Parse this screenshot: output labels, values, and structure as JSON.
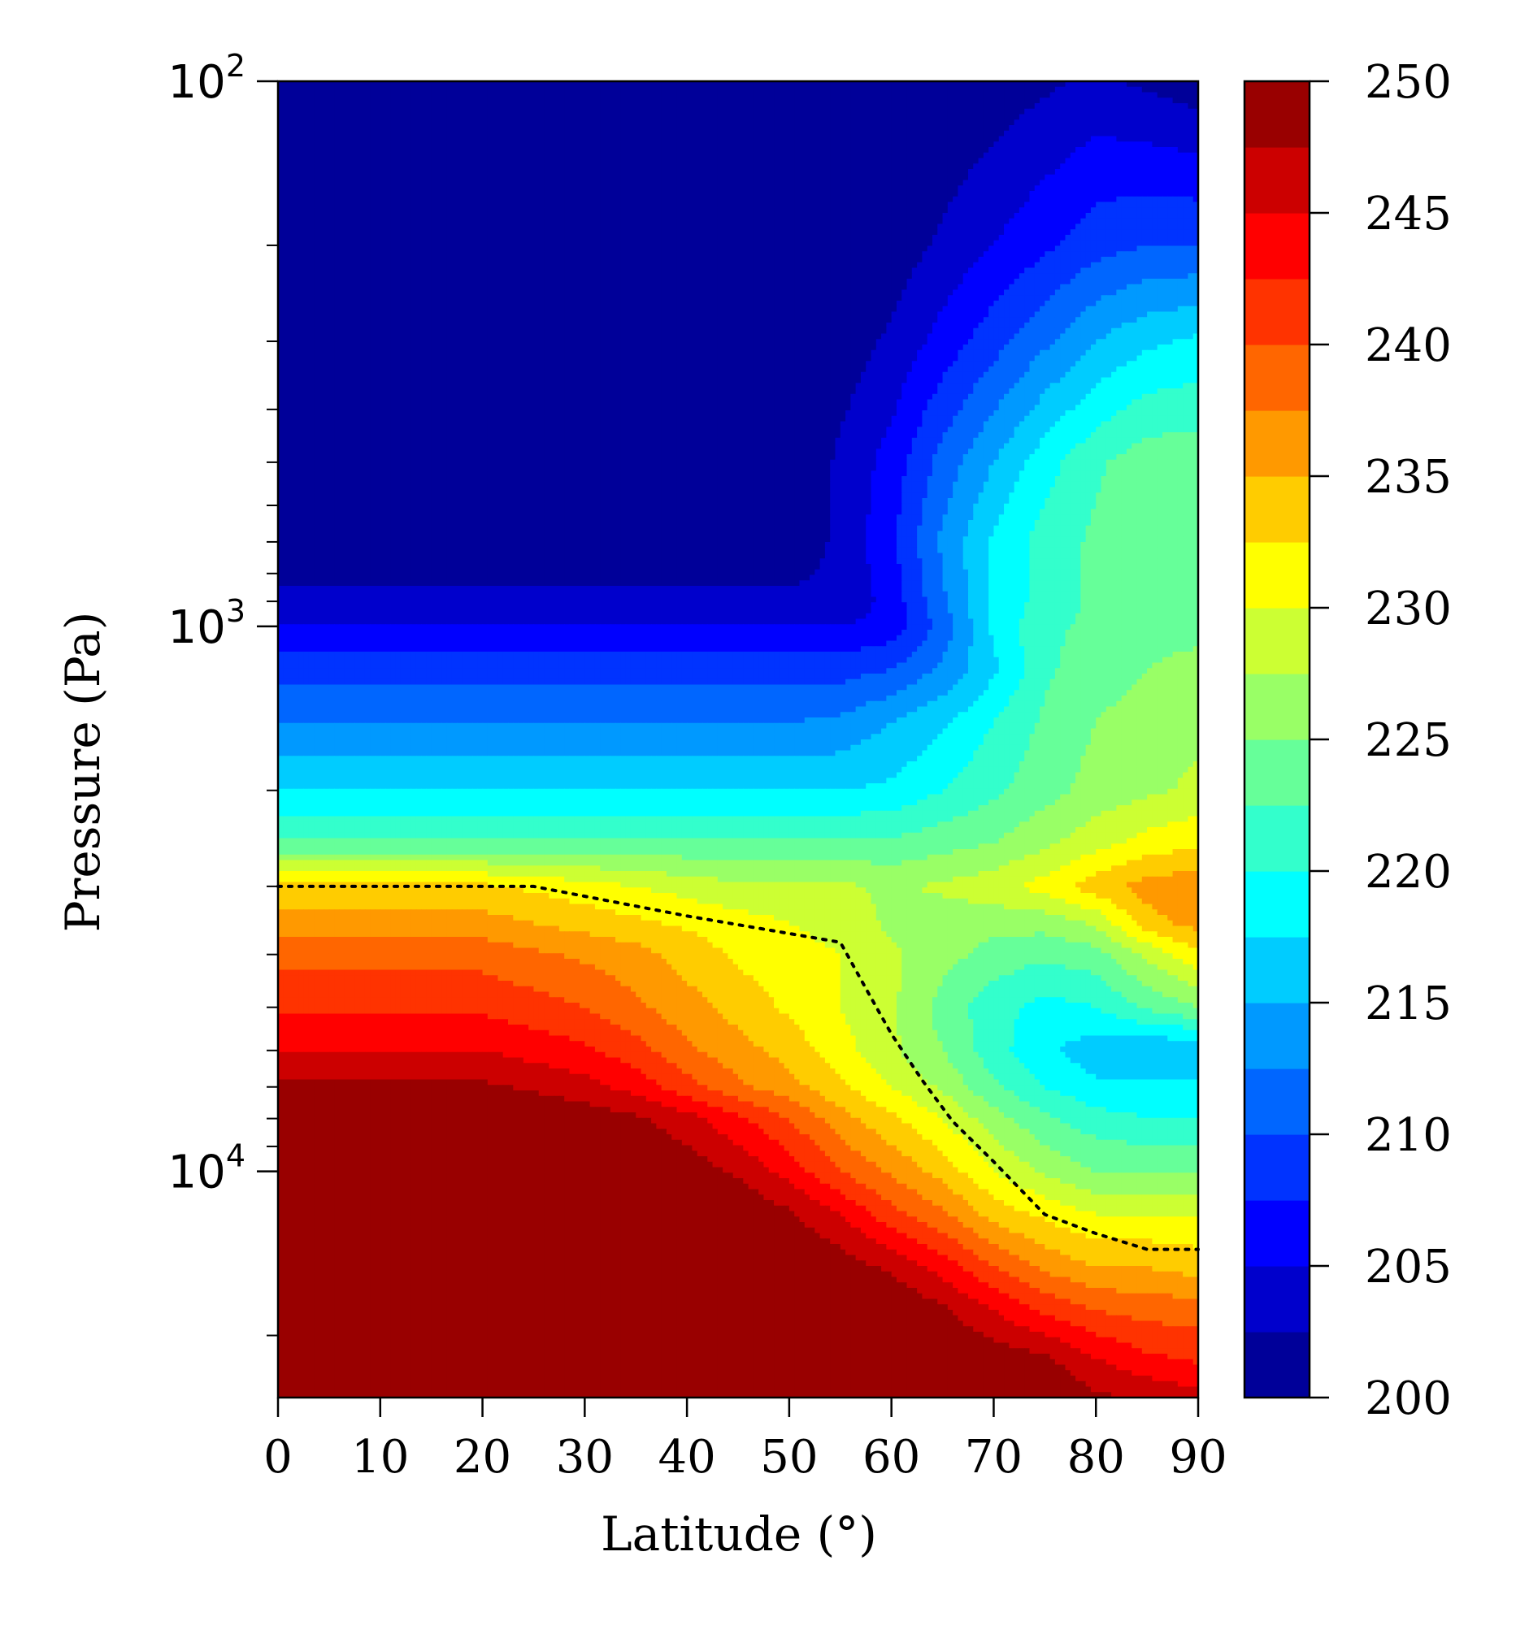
{
  "chart_data": {
    "type": "contour",
    "xlabel": "Latitude (°)",
    "ylabel": "Pressure (Pa)",
    "xlim": [
      0,
      90
    ],
    "ylim_log": [
      100,
      26000
    ],
    "y_scale": "log",
    "y_inverted": true,
    "x_ticks": [
      "0",
      "10",
      "20",
      "30",
      "40",
      "50",
      "60",
      "70",
      "80",
      "90"
    ],
    "y_ticks": [
      {
        "base": "10",
        "exp": "2",
        "value": 100
      },
      {
        "base": "10",
        "exp": "3",
        "value": 1000
      },
      {
        "base": "10",
        "exp": "4",
        "value": 10000
      }
    ],
    "colorbar": {
      "levels": [
        200,
        202.5,
        205,
        207.5,
        210,
        212.5,
        215,
        217.5,
        220,
        222.5,
        225,
        227.5,
        230,
        232.5,
        235,
        237.5,
        240,
        242.5,
        245,
        247.5,
        250
      ],
      "tick_labels": [
        "200",
        "205",
        "210",
        "215",
        "220",
        "225",
        "230",
        "235",
        "240",
        "245",
        "250"
      ],
      "colormap": "jet"
    },
    "grid": false,
    "tropopause_line": {
      "style": "dotted",
      "color": "#000000",
      "points": [
        [
          0,
          3000
        ],
        [
          25,
          3000
        ],
        [
          40,
          3400
        ],
        [
          55,
          3800
        ],
        [
          58,
          4800
        ],
        [
          60,
          5600
        ],
        [
          63,
          6800
        ],
        [
          66,
          8100
        ],
        [
          70,
          9600
        ],
        [
          75,
          12000
        ],
        [
          80,
          13000
        ],
        [
          85,
          13900
        ],
        [
          90,
          13900
        ]
      ]
    },
    "temperature_field": {
      "units": "K",
      "latitudes": [
        0,
        5,
        10,
        15,
        20,
        25,
        30,
        35,
        40,
        45,
        50,
        55,
        60,
        65,
        70,
        75,
        80,
        85,
        90
      ],
      "pressures": [
        100,
        200,
        300,
        500,
        700,
        900,
        1000,
        1200,
        1500,
        2000,
        2500,
        3000,
        3500,
        4000,
        5000,
        6000,
        7000,
        8000,
        10000,
        12000,
        15000,
        18000,
        22000,
        26000
      ],
      "values": [
        [
          200,
          200,
          200,
          200,
          200,
          200,
          200,
          200,
          200,
          200,
          200,
          200,
          200,
          200,
          201,
          202,
          203,
          202,
          201
        ],
        [
          200,
          200,
          200,
          200,
          200,
          200,
          200,
          200,
          200,
          200,
          200,
          200,
          201,
          203,
          205,
          207,
          209,
          210,
          210
        ],
        [
          200,
          200,
          200,
          200,
          200,
          200,
          200,
          200,
          200,
          200,
          200,
          201,
          203,
          206,
          209,
          212,
          215,
          217,
          218
        ],
        [
          200,
          200,
          200,
          200,
          200,
          200,
          200,
          200,
          200,
          200,
          200,
          203,
          206,
          211,
          215,
          219,
          222,
          224,
          224
        ],
        [
          201,
          201,
          201,
          201,
          201,
          201,
          201,
          201,
          201,
          201,
          201,
          203,
          207,
          213,
          218,
          221,
          223,
          225,
          225
        ],
        [
          203,
          203,
          203,
          203,
          203,
          203,
          203,
          203,
          203,
          203,
          203,
          203,
          206,
          212,
          218,
          221,
          223,
          224,
          224
        ],
        [
          205,
          205,
          205,
          205,
          205,
          205,
          205,
          205,
          205,
          205,
          205,
          205,
          206,
          211,
          218,
          222,
          223,
          224,
          224
        ],
        [
          209,
          209,
          209,
          209,
          209,
          209,
          209,
          209,
          209,
          209,
          209,
          209,
          210,
          213,
          217,
          222,
          224,
          225,
          226
        ],
        [
          212.5,
          212.5,
          212.5,
          212.5,
          212.5,
          212.5,
          212.5,
          212.5,
          212.5,
          212.5,
          212.5,
          213,
          215,
          217,
          220,
          223,
          225,
          226,
          227
        ],
        [
          217.5,
          217.5,
          217.5,
          217.5,
          217.5,
          217.5,
          217.5,
          217.5,
          217.5,
          217.5,
          217.5,
          217.5,
          218,
          220,
          222,
          224,
          226,
          227,
          228
        ],
        [
          223,
          223,
          223,
          223,
          223,
          223,
          223,
          223,
          223,
          223,
          223,
          223,
          223,
          224,
          225,
          227,
          229,
          231,
          232
        ],
        [
          233,
          233,
          233,
          233,
          233,
          232,
          231,
          230,
          229,
          228,
          228,
          228,
          227,
          228,
          229,
          231,
          234,
          236,
          237
        ],
        [
          236,
          236,
          236,
          236,
          236,
          235,
          234,
          233,
          232,
          231,
          230,
          229,
          227,
          226,
          226,
          226,
          228,
          234,
          236
        ],
        [
          239,
          239,
          239,
          239,
          239,
          238,
          237,
          236,
          234,
          232,
          231,
          230,
          228,
          226,
          224,
          223,
          224,
          228,
          232
        ],
        [
          242,
          242,
          242,
          242,
          242,
          241,
          240,
          238,
          236,
          234,
          232,
          230,
          228,
          224,
          221,
          219,
          220,
          223,
          225
        ],
        [
          245,
          245,
          245,
          245,
          245,
          244,
          243,
          241,
          238,
          236,
          234,
          231,
          228,
          225,
          221,
          218,
          216,
          215,
          215
        ],
        [
          248,
          248,
          248,
          248,
          248,
          247,
          246,
          244,
          241,
          238,
          236,
          233,
          230,
          227,
          223,
          220,
          218,
          218,
          218
        ],
        [
          250,
          250,
          250,
          250,
          250,
          250,
          249,
          248,
          246,
          243,
          240,
          236,
          233,
          230,
          226,
          223,
          221,
          220,
          220
        ],
        [
          250,
          250,
          250,
          250,
          250,
          250,
          250,
          250,
          249,
          247,
          244,
          240,
          237,
          234,
          230,
          227,
          225,
          225,
          225
        ],
        [
          250,
          250,
          250,
          250,
          250,
          250,
          250,
          250,
          250,
          250,
          248,
          245,
          241,
          238,
          234,
          232,
          230,
          230,
          230
        ],
        [
          250,
          250,
          250,
          250,
          250,
          250,
          250,
          250,
          250,
          250,
          250,
          249,
          247,
          244,
          240,
          237,
          235,
          235,
          234
        ],
        [
          250,
          250,
          250,
          250,
          250,
          250,
          250,
          250,
          250,
          250,
          250,
          250,
          250,
          248,
          245,
          242,
          240,
          239,
          239
        ],
        [
          250,
          250,
          250,
          250,
          250,
          250,
          250,
          250,
          250,
          250,
          250,
          250,
          250,
          250,
          249,
          248,
          245,
          243,
          242
        ],
        [
          250,
          250,
          250,
          250,
          250,
          250,
          250,
          250,
          250,
          250,
          250,
          250,
          250,
          250,
          250,
          250,
          248,
          247,
          246
        ]
      ]
    }
  }
}
